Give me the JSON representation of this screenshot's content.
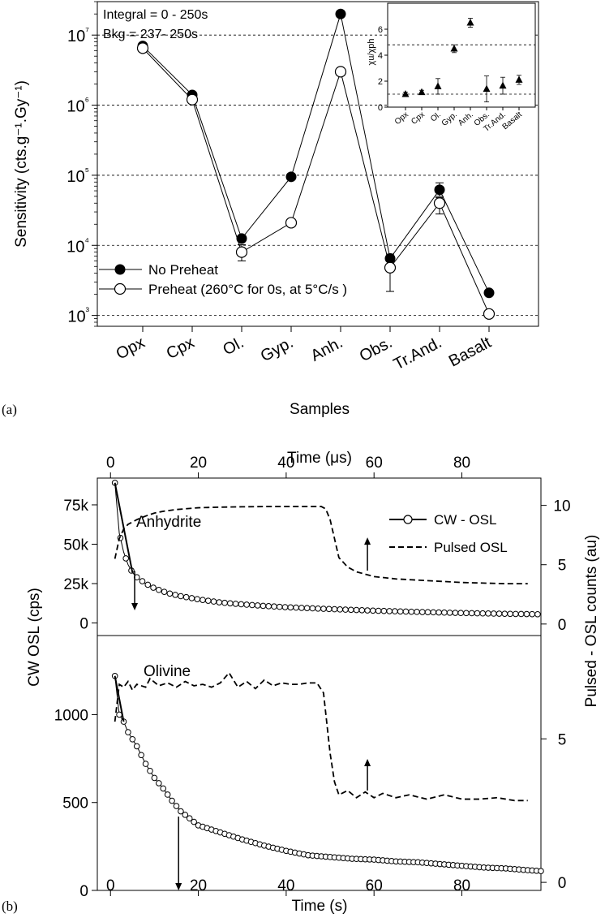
{
  "figure": {
    "panel_a_label": "(a)",
    "panel_b_label": "(b)"
  },
  "chart_data": [
    {
      "id": "a_main",
      "type": "line",
      "scale_y": "log",
      "grid_y": "dashed",
      "xlabel": "Samples",
      "ylabel": "Sensitivity (cts.g⁻¹.Gy⁻¹)",
      "ylim": [
        700,
        30000000
      ],
      "categories": [
        "Opx",
        "Cpx",
        "Ol.",
        "Gyp.",
        "Anh.",
        "Obs.",
        "Tr.And.",
        "Basalt"
      ],
      "y_ticks": [
        {
          "value": 1000,
          "label": "10³"
        },
        {
          "value": 10000,
          "label": "10⁴"
        },
        {
          "value": 100000,
          "label": "10⁵"
        },
        {
          "value": 1000000,
          "label": "10⁶"
        },
        {
          "value": 10000000,
          "label": "10⁷"
        }
      ],
      "annotations": [
        "Integral = 0 - 250s",
        "Bkg = 237- 250s"
      ],
      "legend_position": "bottom-left",
      "series": [
        {
          "name": "No Preheat",
          "marker": "filled-circle",
          "values": [
            7000000,
            1400000,
            12500,
            95000,
            20000000,
            6500,
            62000,
            2100
          ],
          "err_lo": [
            0,
            0,
            0,
            0,
            0,
            0,
            12000,
            0
          ],
          "err_hi": [
            0,
            0,
            0,
            0,
            0,
            0,
            16000,
            0
          ]
        },
        {
          "name": "Preheat (260°C for 0s, at 5°C/s )",
          "marker": "open-circle",
          "values": [
            6500000,
            1200000,
            8000,
            21000,
            3000000,
            4800,
            40000,
            1050
          ],
          "err_lo": [
            0,
            0,
            2000,
            0,
            0,
            2600,
            12000,
            0
          ],
          "err_hi": [
            0,
            0,
            2200,
            0,
            0,
            2700,
            8000,
            0
          ]
        }
      ]
    },
    {
      "id": "a_inset",
      "type": "scatter",
      "ylabel": "χu/χph",
      "ylim": [
        0,
        8
      ],
      "y_ticks": [
        0,
        2,
        4,
        6
      ],
      "categories": [
        "Opx",
        "Cpx",
        "Ol.",
        "Gyp.",
        "Anh.",
        "Obs.",
        "Tr.And.",
        "Basalt"
      ],
      "reference_lines": [
        1,
        4.8
      ],
      "series": [
        {
          "marker": "filled-triangle",
          "values": [
            1.0,
            1.15,
            1.6,
            4.5,
            6.5,
            1.4,
            1.65,
            2.1
          ],
          "err": [
            0.15,
            0.15,
            0.6,
            0.3,
            0.35,
            1.0,
            0.65,
            0.35
          ]
        }
      ]
    },
    {
      "id": "b_top",
      "type": "line",
      "text_label": "Anhydrite",
      "x_top_label": "Time (μs)",
      "x_top_ticks": [
        0,
        20,
        40,
        60,
        80
      ],
      "xlim_top_us": [
        -3,
        98
      ],
      "xlim": [
        -3,
        98
      ],
      "ylim_left": [
        -8000,
        92000
      ],
      "ylim_right": [
        -0.97,
        12.3
      ],
      "y_left_ticks": [
        {
          "value": 0,
          "label": "0"
        },
        {
          "value": 25000,
          "label": "25k"
        },
        {
          "value": 50000,
          "label": "50k"
        },
        {
          "value": 75000,
          "label": "75k"
        }
      ],
      "y_right_ticks": [
        0,
        5,
        10
      ],
      "legend_position": "top-right",
      "arrows": [
        {
          "series": "CW - OSL",
          "x": 5.5,
          "from": 33000,
          "to": 8000
        },
        {
          "series": "Pulsed OSL",
          "x_us": 58.5,
          "from": 4.5,
          "to": 7.3
        }
      ],
      "series": [
        {
          "name": "CW - OSL",
          "axis": "left",
          "style": "line-open-circle",
          "x": [
            1,
            2,
            3,
            4,
            5,
            6,
            8,
            10,
            13,
            16,
            20,
            25,
            30,
            35,
            40,
            50,
            60,
            70,
            80,
            90,
            98
          ],
          "y": [
            89000,
            57000,
            45000,
            37000,
            32000,
            29000,
            25000,
            22000,
            19000,
            17000,
            15000,
            13000,
            11800,
            10800,
            10000,
            8800,
            7800,
            7000,
            6300,
            5800,
            5500
          ]
        },
        {
          "name": "Pulsed OSL",
          "axis": "right",
          "style": "dashed",
          "x_units": "μs",
          "x": [
            1,
            2,
            3,
            4,
            6,
            8,
            10,
            12,
            15,
            20,
            25,
            30,
            35,
            40,
            45,
            48,
            49,
            50,
            51,
            52,
            54,
            56,
            58,
            60,
            65,
            70,
            75,
            80,
            85,
            90,
            95
          ],
          "y": [
            5.5,
            7.2,
            8.0,
            8.4,
            8.8,
            9.1,
            9.35,
            9.5,
            9.65,
            9.8,
            9.85,
            9.88,
            9.9,
            9.9,
            9.9,
            9.9,
            9.7,
            8.8,
            7.2,
            5.6,
            4.8,
            4.4,
            4.2,
            4.0,
            3.8,
            3.7,
            3.6,
            3.5,
            3.45,
            3.4,
            3.4
          ]
        }
      ]
    },
    {
      "id": "b_bottom",
      "type": "line",
      "text_label": "Olivine",
      "xlabel": "Time (s)",
      "x_ticks": [
        0,
        20,
        40,
        60,
        80
      ],
      "xlim": [
        -3,
        98
      ],
      "ylim_left": [
        0,
        1450
      ],
      "ylim_right": [
        -0.28,
        8.6
      ],
      "y_left_ticks": [
        0,
        500,
        1000
      ],
      "y_right_ticks": [
        0,
        5
      ],
      "left_axis_title": "CW OSL (cps)",
      "right_axis_title": "Pulsed - OSL counts (au)",
      "arrows": [
        {
          "series": "CW - OSL",
          "x": 15.5,
          "from": 420,
          "to": 0
        },
        {
          "series": "Pulsed OSL",
          "x_us": 58.5,
          "from": 3.2,
          "to": 4.3
        }
      ],
      "series": [
        {
          "name": "CW - OSL",
          "axis": "left",
          "style": "line-open-circle",
          "x": [
            1,
            2,
            3,
            4,
            5,
            6,
            8,
            10,
            12,
            14,
            16,
            18,
            20,
            25,
            30,
            35,
            40,
            45,
            50,
            55,
            60,
            65,
            70,
            75,
            80,
            85,
            90,
            95,
            98
          ],
          "y": [
            1220,
            1000,
            960,
            900,
            860,
            820,
            720,
            640,
            580,
            510,
            450,
            410,
            370,
            330,
            290,
            255,
            225,
            200,
            190,
            180,
            175,
            165,
            160,
            150,
            140,
            130,
            125,
            115,
            110
          ]
        },
        {
          "name": "Pulsed OSL",
          "axis": "right",
          "style": "dashed",
          "x_units": "μs",
          "x": [
            1,
            2,
            3,
            4,
            5,
            6,
            8,
            9,
            11,
            13,
            15,
            17,
            19,
            21,
            23,
            25,
            27,
            29,
            31,
            33,
            35,
            37,
            39,
            41,
            43,
            45,
            47,
            48.5,
            50,
            51,
            52,
            54,
            56,
            58,
            60,
            62,
            65,
            68,
            72,
            76,
            80,
            84,
            88,
            92,
            95
          ],
          "y": [
            5.6,
            6.9,
            6.8,
            7.0,
            6.7,
            6.9,
            6.8,
            7.1,
            6.85,
            6.95,
            6.8,
            7.0,
            6.85,
            6.9,
            6.8,
            6.95,
            7.3,
            6.8,
            7.0,
            6.75,
            7.05,
            6.85,
            6.95,
            6.9,
            6.9,
            6.95,
            6.95,
            6.6,
            4.5,
            3.5,
            3.05,
            3.2,
            2.95,
            3.15,
            2.95,
            3.1,
            2.95,
            3.05,
            2.9,
            3.05,
            2.9,
            2.9,
            2.95,
            2.85,
            2.85
          ]
        }
      ]
    }
  ]
}
